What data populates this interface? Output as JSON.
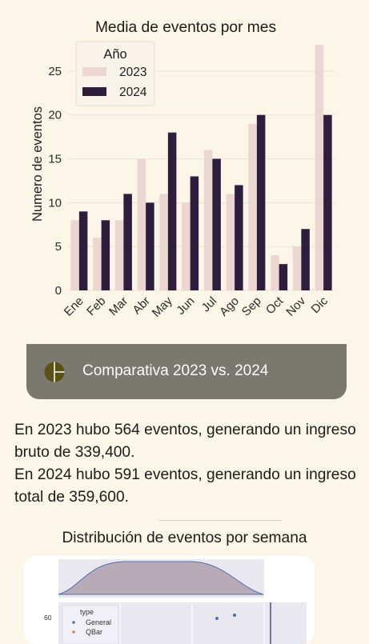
{
  "chart_data": {
    "type": "bar",
    "title": "Media de eventos por mes",
    "xlabel": "",
    "ylabel": "Numero de eventos",
    "categories": [
      "Ene",
      "Feb",
      "Mar",
      "Abr",
      "May",
      "Jun",
      "Jul",
      "Ago",
      "Sep",
      "Oct",
      "Nov",
      "Dic"
    ],
    "series": [
      {
        "name": "2023",
        "color": "#ebd6d2",
        "values": [
          8,
          6,
          8,
          15,
          11,
          10,
          16,
          11,
          19,
          4,
          5,
          28
        ]
      },
      {
        "name": "2024",
        "color": "#2d1e3e",
        "values": [
          9,
          8,
          11,
          10,
          18,
          13,
          15,
          12,
          20,
          3,
          7,
          20
        ]
      }
    ],
    "ylim": [
      0,
      28
    ],
    "yticks": [
      0,
      5,
      10,
      15,
      20,
      25
    ],
    "grid": true,
    "legend_title": "Año",
    "legend_position": "top-left"
  },
  "banner": {
    "icon": "pie-chart-icon",
    "text": "Comparativa 2023 vs. 2024",
    "icon_color": "#5a5214"
  },
  "summary": {
    "line1": "En 2023 hubo 564 eventos, generando un ingreso bruto de 339,400.",
    "line2": "En 2024 hubo 591 eventos, generando un ingreso total de 359,600."
  },
  "weekly": {
    "title": "Distribución de eventos por semana",
    "legend_title": "type",
    "legend_items": [
      "General",
      "QBar"
    ],
    "legend_colors": [
      "#4c72b0",
      "#dd8452"
    ],
    "ytick": "60"
  }
}
